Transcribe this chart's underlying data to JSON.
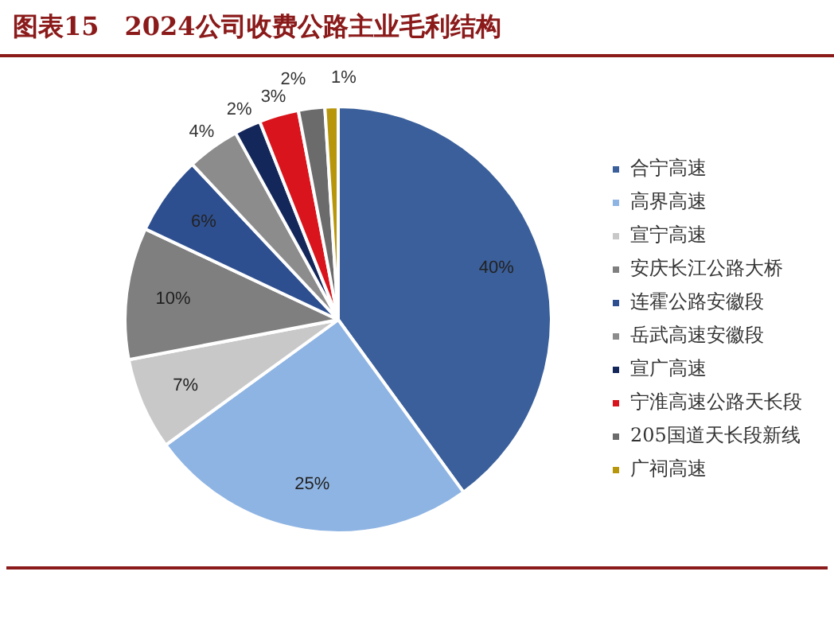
{
  "chart_data": {
    "type": "pie",
    "title": "图表15　2024公司收费公路主业毛利结构",
    "categories": [
      "合宁高速",
      "高界高速",
      "宣宁高速",
      "安庆长江公路大桥",
      "连霍公路安徽段",
      "岳武高速安徽段",
      "宣广高速",
      "宁淮高速公路天长段",
      "205国道天长段新线",
      "广祠高速"
    ],
    "values": [
      40,
      25,
      7,
      10,
      6,
      4,
      2,
      3,
      2,
      1
    ],
    "colors": [
      "#3a5f9a",
      "#8eb4e3",
      "#c8c8c8",
      "#7f7f7f",
      "#2e4f8f",
      "#8c8c8c",
      "#14275a",
      "#d9141c",
      "#6b6b6b",
      "#b8960c"
    ],
    "value_labels": [
      "40%",
      "25%",
      "7%",
      "10%",
      "6%",
      "4%",
      "2%",
      "3%",
      "2%",
      "1%"
    ],
    "legend": "right"
  }
}
